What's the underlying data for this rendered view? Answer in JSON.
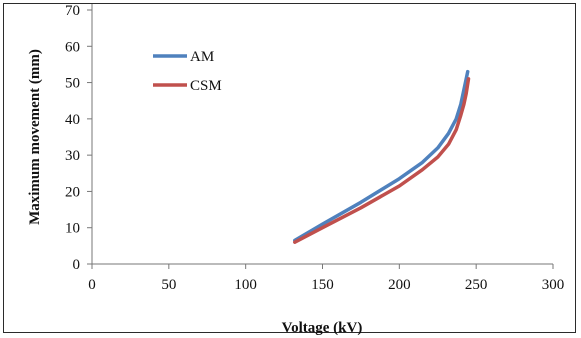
{
  "chart_data": {
    "type": "line",
    "title": "",
    "xlabel": "Voltage (kV)",
    "ylabel": "Maximum movement (mm)",
    "xlim": [
      0,
      300
    ],
    "ylim": [
      0,
      70
    ],
    "xticks": [
      0,
      50,
      100,
      150,
      200,
      250,
      300
    ],
    "yticks": [
      0,
      10,
      20,
      30,
      40,
      50,
      60,
      70
    ],
    "grid": false,
    "legend_position": "top-left",
    "series": [
      {
        "name": "AM",
        "color": "#4f81bd",
        "x": [
          132,
          150,
          175,
          200,
          215,
          225,
          232,
          237,
          240,
          242,
          243.5,
          244.5
        ],
        "y": [
          6.5,
          11,
          17,
          23.5,
          28,
          32,
          36,
          40,
          44,
          48,
          51,
          53
        ]
      },
      {
        "name": "CSM",
        "color": "#c0504d",
        "x": [
          132,
          150,
          175,
          200,
          215,
          225,
          232,
          237,
          240,
          242,
          243.5,
          245
        ],
        "y": [
          6,
          10,
          15.5,
          21.5,
          26,
          29.5,
          33,
          37,
          41,
          44,
          47,
          51
        ]
      }
    ]
  }
}
